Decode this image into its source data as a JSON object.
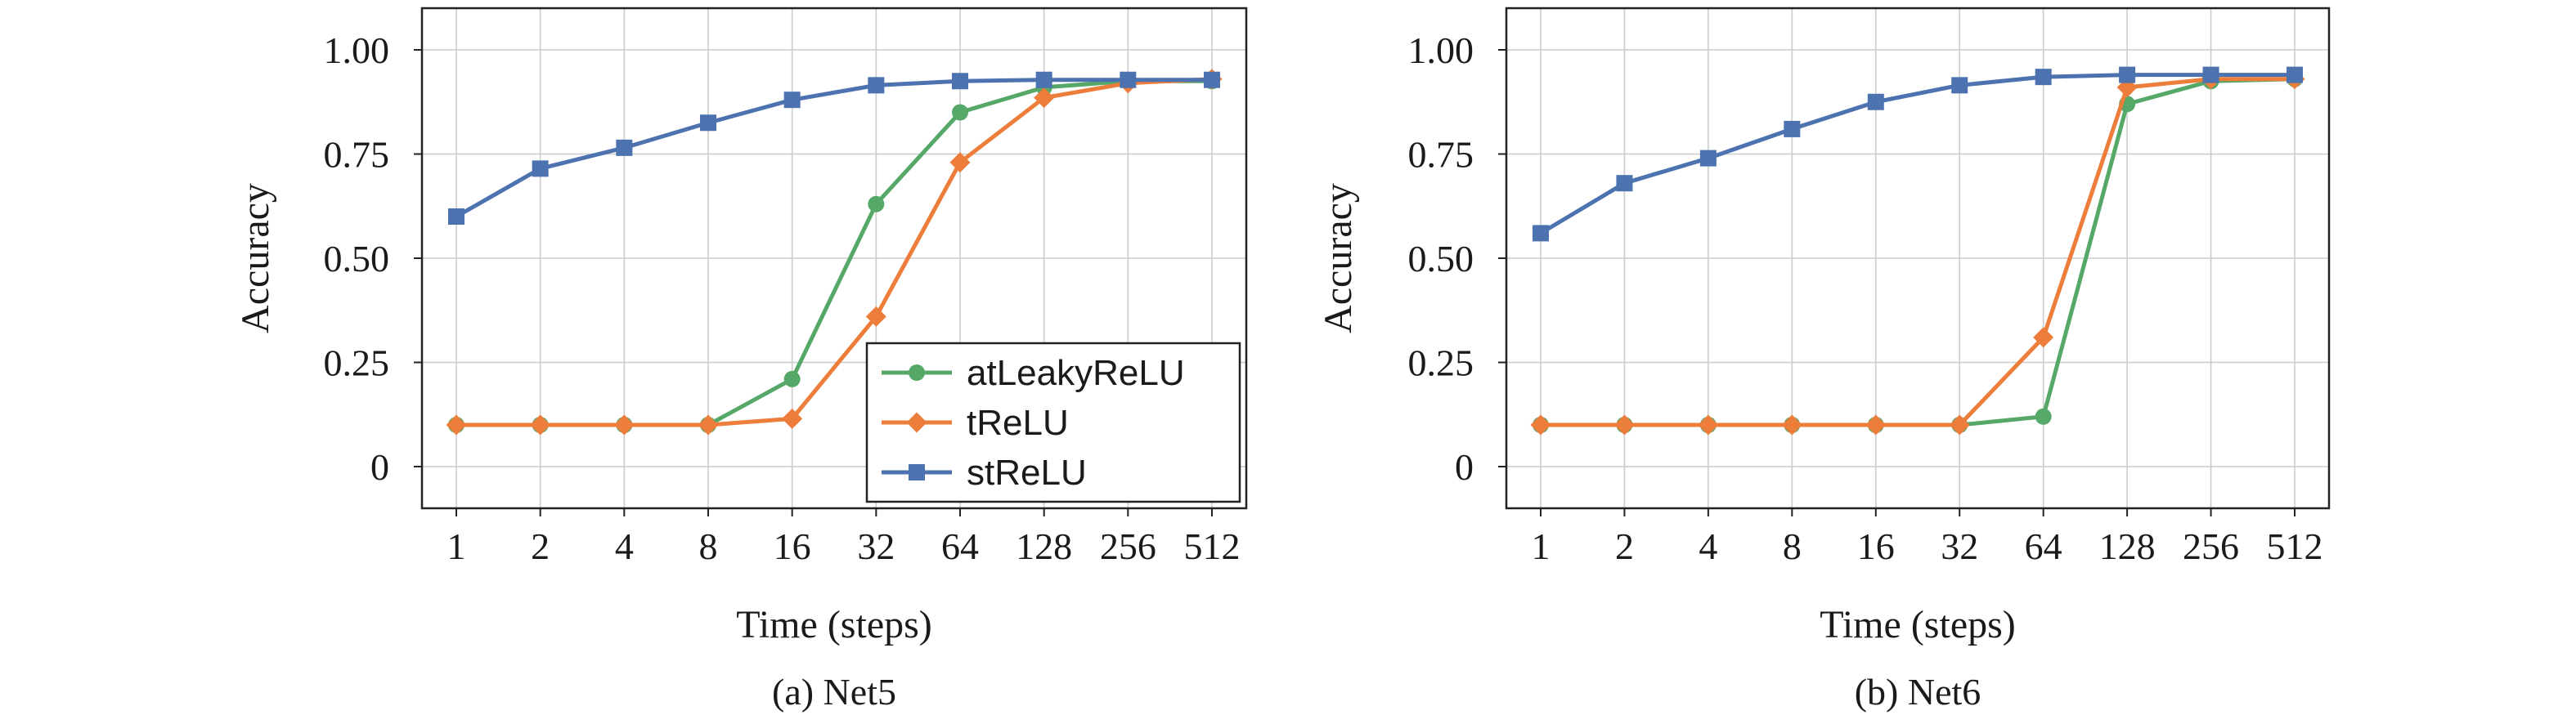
{
  "colors": {
    "atLeakyReLU": "#55a868",
    "tReLU": "#ed7d3a",
    "stReLU": "#4c72b0"
  },
  "chart_data": [
    {
      "type": "line",
      "caption": "(a) Net5",
      "xlabel": "Time (steps)",
      "ylabel": "Accuracy",
      "categories": [
        "1",
        "2",
        "4",
        "8",
        "16",
        "32",
        "64",
        "128",
        "256",
        "512"
      ],
      "yticks": [
        "0",
        "0.25",
        "0.50",
        "0.75",
        "1.00"
      ],
      "ytick_values": [
        0,
        0.25,
        0.5,
        0.75,
        1.0
      ],
      "ylim": [
        -0.1,
        1.1
      ],
      "grid": true,
      "legend": "bottom-right",
      "series": [
        {
          "name": "atLeakyReLU",
          "marker": "circle",
          "values": [
            0.1,
            0.1,
            0.1,
            0.1,
            0.21,
            0.63,
            0.85,
            0.91,
            0.925,
            0.925
          ]
        },
        {
          "name": "tReLU",
          "marker": "diamond",
          "values": [
            0.1,
            0.1,
            0.1,
            0.1,
            0.115,
            0.36,
            0.73,
            0.885,
            0.92,
            0.93
          ]
        },
        {
          "name": "stReLU",
          "marker": "square",
          "values": [
            0.6,
            0.715,
            0.765,
            0.825,
            0.88,
            0.915,
            0.925,
            0.928,
            0.928,
            0.928
          ]
        }
      ]
    },
    {
      "type": "line",
      "caption": "(b) Net6",
      "xlabel": "Time (steps)",
      "ylabel": "Accuracy",
      "categories": [
        "1",
        "2",
        "4",
        "8",
        "16",
        "32",
        "64",
        "128",
        "256",
        "512"
      ],
      "yticks": [
        "0",
        "0.25",
        "0.50",
        "0.75",
        "1.00"
      ],
      "ytick_values": [
        0,
        0.25,
        0.5,
        0.75,
        1.0
      ],
      "ylim": [
        -0.1,
        1.1
      ],
      "grid": true,
      "legend": "none",
      "series": [
        {
          "name": "atLeakyReLU",
          "marker": "circle",
          "values": [
            0.1,
            0.1,
            0.1,
            0.1,
            0.1,
            0.1,
            0.12,
            0.87,
            0.925,
            0.93
          ]
        },
        {
          "name": "tReLU",
          "marker": "diamond",
          "values": [
            0.1,
            0.1,
            0.1,
            0.1,
            0.1,
            0.1,
            0.31,
            0.91,
            0.93,
            0.93
          ]
        },
        {
          "name": "stReLU",
          "marker": "square",
          "values": [
            0.56,
            0.68,
            0.74,
            0.81,
            0.875,
            0.915,
            0.935,
            0.94,
            0.94,
            0.94
          ]
        }
      ]
    }
  ]
}
